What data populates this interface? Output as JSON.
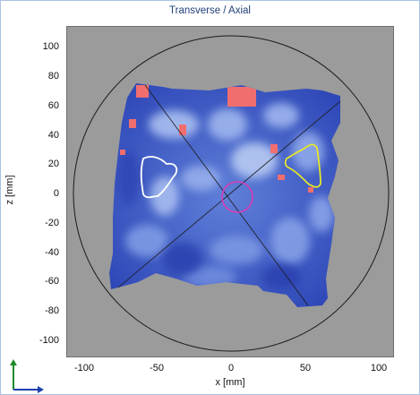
{
  "window": {
    "title": "Transverse / Axial"
  },
  "axes": {
    "xlabel": "x [mm]",
    "ylabel": "z [mm]",
    "y_ticks": [
      "100",
      "80",
      "60",
      "40",
      "20",
      "0",
      "-20",
      "-40",
      "-60",
      "-80",
      "-100"
    ],
    "x_ticks": [
      "-100",
      "-50",
      "0",
      "50",
      "100"
    ]
  },
  "colors": {
    "background": "#9b9b9b",
    "dose_low": "#2f48b8",
    "dose_mid": "#8aa6e8",
    "hot_spot": "#f06e6e",
    "contour_left": "#ffffff",
    "contour_right": "#e6e62a",
    "center_ring": "#d63db5",
    "outline": "#1a1a1a"
  },
  "orientation_icon": {
    "name": "axes-orientation-icon"
  }
}
